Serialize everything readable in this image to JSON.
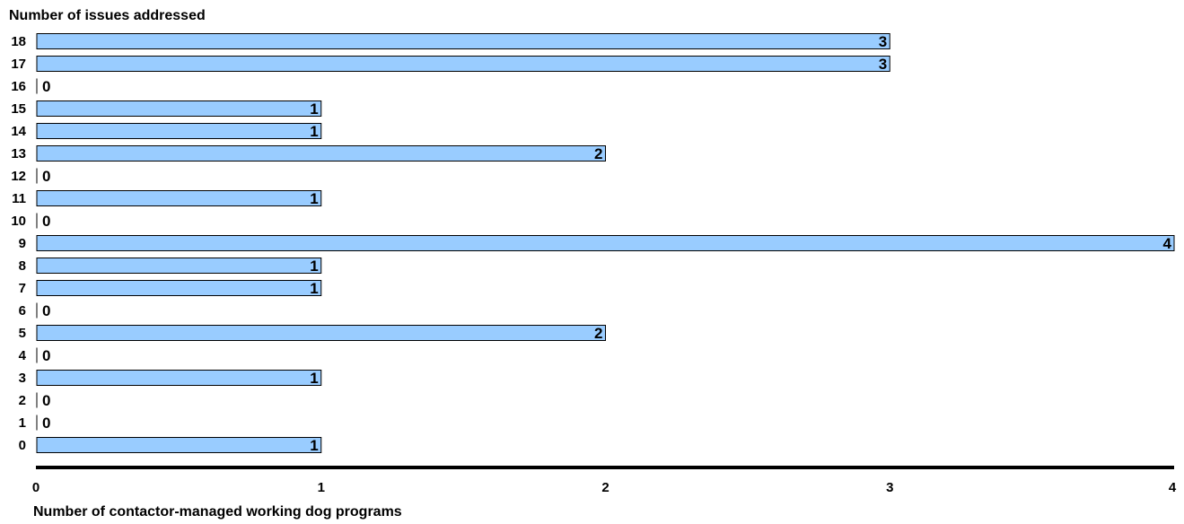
{
  "chart_data": {
    "type": "bar",
    "orientation": "horizontal",
    "title": "Number of issues addressed",
    "xlabel": "Number of contactor-managed working dog programs",
    "ylabel": "",
    "categories": [
      "18",
      "17",
      "16",
      "15",
      "14",
      "13",
      "12",
      "11",
      "10",
      "9",
      "8",
      "7",
      "6",
      "5",
      "4",
      "3",
      "2",
      "1",
      "0"
    ],
    "values": [
      3,
      3,
      0,
      1,
      1,
      2,
      0,
      1,
      0,
      4,
      1,
      1,
      0,
      2,
      0,
      1,
      0,
      0,
      1
    ],
    "data_labels": [
      "3",
      "3",
      "0",
      "1",
      "1",
      "2",
      "0",
      "1",
      "0",
      "4",
      "1",
      "1",
      "0",
      "2",
      "0",
      "1",
      "0",
      "0",
      "1"
    ],
    "xlim": [
      0,
      4
    ],
    "xticks": [
      "0",
      "1",
      "2",
      "3",
      "4"
    ],
    "grid": false,
    "legend": "none",
    "colors": {
      "bar_fill": "#99ccff",
      "bar_stroke": "#000000",
      "axis": "#000000",
      "text": "#000000"
    }
  }
}
